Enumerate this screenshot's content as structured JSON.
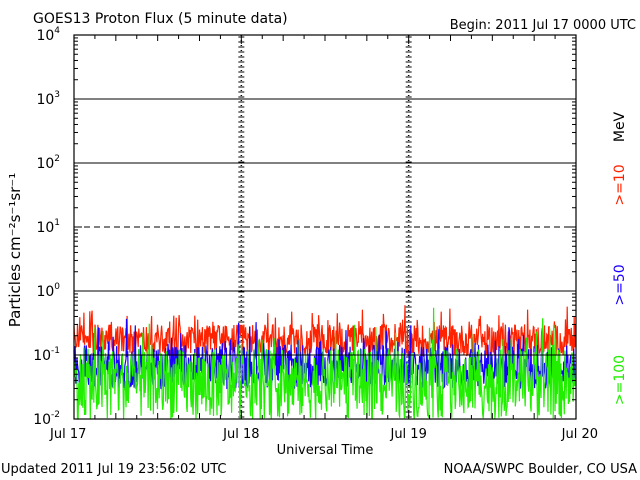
{
  "chart_data": {
    "type": "line",
    "title": "GOES13 Proton Flux (5 minute data)",
    "begin": "Begin: 2011 Jul 17 0000 UTC",
    "xlabel": "Universal Time",
    "ylabel": "Particles cm⁻²s⁻¹sr⁻¹",
    "y_scale": "log",
    "ylim": [
      0.01,
      10000
    ],
    "y_ticks": [
      {
        "base": "10",
        "exp": "-2"
      },
      {
        "base": "10",
        "exp": "-1"
      },
      {
        "base": "10",
        "exp": "0"
      },
      {
        "base": "10",
        "exp": "1"
      },
      {
        "base": "10",
        "exp": "2"
      },
      {
        "base": "10",
        "exp": "3"
      },
      {
        "base": "10",
        "exp": "4"
      }
    ],
    "x_ticks": [
      "Jul 17",
      "Jul 18",
      "Jul 19",
      "Jul 20"
    ],
    "xlim_days": [
      0,
      3
    ],
    "unit_label": "MeV",
    "series": [
      {
        "name": ">=10",
        "color": "#ff2200",
        "base": 0.17,
        "spread": 0.25
      },
      {
        "name": ">=50",
        "color": "#1a00ff",
        "base": 0.065,
        "spread": 0.35
      },
      {
        "name": ">=100",
        "color": "#22ee00",
        "base": 0.035,
        "spread": 0.55
      }
    ]
  },
  "footer": {
    "updated": "Updated 2011 Jul 19 23:56:02 UTC",
    "credit": "NOAA/SWPC Boulder, CO USA"
  }
}
